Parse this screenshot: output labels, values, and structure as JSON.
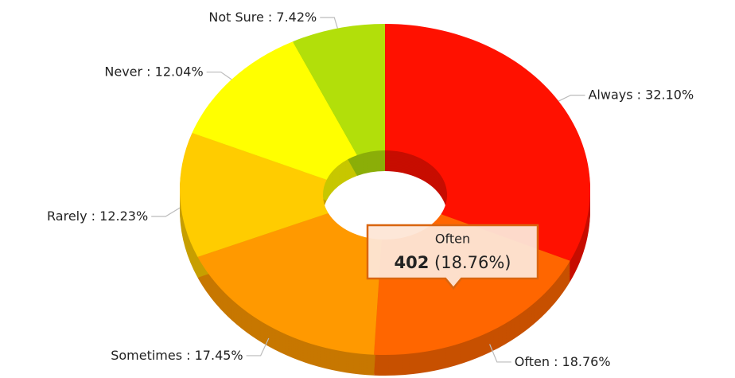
{
  "chart_data": {
    "type": "donut3d",
    "categories": [
      "Always",
      "Often",
      "Sometimes",
      "Rarely",
      "Never",
      "Not Sure"
    ],
    "values": [
      32.1,
      18.76,
      17.45,
      12.23,
      12.04,
      7.42
    ],
    "value_labels": [
      "32.10%",
      "18.76%",
      "17.45%",
      "12.23%",
      "12.04%",
      "7.42%"
    ],
    "label_separator": " : ",
    "colors": [
      "#ff1100",
      "#ff6600",
      "#ff9900",
      "#ffcc00",
      "#ffff00",
      "#b2df0a"
    ],
    "tooltip": {
      "title": "Often",
      "value": 402,
      "detail": "(18.76%)"
    }
  }
}
